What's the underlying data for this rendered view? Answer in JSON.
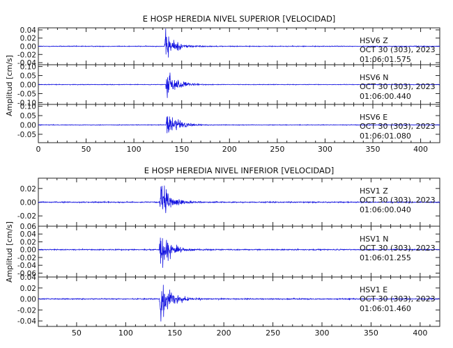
{
  "chart_data": [
    {
      "type": "line",
      "title": "E HOSP HEREDIA NIVEL SUPERIOR [VELOCIDAD]",
      "ylabel": "Amplitud [cm/s]",
      "xlim": [
        0,
        420
      ],
      "xticks": [
        0,
        50,
        100,
        150,
        200,
        250,
        300,
        350,
        400
      ],
      "line_color": "#1414e0",
      "series": [
        {
          "station": "HSV6",
          "component": "Z",
          "date": "OCT 30 (303), 2023",
          "time": "01:06:01.575",
          "ylim": [
            -0.045,
            0.045
          ],
          "yticks": [
            -0.04,
            -0.02,
            0.0,
            0.02,
            0.04
          ],
          "ytick_labels": [
            "-0.04",
            "-0.02",
            "0.00",
            "0.02",
            "0.04"
          ],
          "onset_x": 132,
          "peak_amplitude": 0.04,
          "noise_amplitude": 0.0008,
          "decay_s": 9
        },
        {
          "station": "HSV6",
          "component": "N",
          "date": "OCT 30 (303), 2023",
          "time": "01:06:00.440",
          "ylim": [
            -0.11,
            0.11
          ],
          "yticks": [
            -0.1,
            -0.05,
            0.0,
            0.05,
            0.1
          ],
          "ytick_labels": [
            "-0.10",
            "-0.05",
            "0.00",
            "0.05",
            "0.10"
          ],
          "onset_x": 133,
          "peak_amplitude": 0.1,
          "noise_amplitude": 0.0015,
          "decay_s": 9
        },
        {
          "station": "HSV6",
          "component": "E",
          "date": "OCT 30 (303), 2023",
          "time": "01:06:01.080",
          "ylim": [
            -0.095,
            0.11
          ],
          "yticks": [
            -0.05,
            0.0,
            0.05,
            0.1
          ],
          "ytick_labels": [
            "-0.05",
            "0.00",
            "0.05",
            "0.10"
          ],
          "onset_x": 133,
          "peak_amplitude": 0.09,
          "noise_amplitude": 0.0015,
          "decay_s": 10
        }
      ]
    },
    {
      "type": "line",
      "title": "E HOSP HEREDIA NIVEL INFERIOR [VELOCIDAD]",
      "ylabel": "Amplitud [cm/s]",
      "xlim": [
        11,
        420
      ],
      "xticks": [
        50,
        100,
        150,
        200,
        250,
        300,
        350,
        400
      ],
      "line_color": "#1414e0",
      "series": [
        {
          "station": "HSV1",
          "component": "Z",
          "date": "OCT 30 (303), 2023",
          "time": "01:06:00.040",
          "ylim": [
            -0.035,
            0.035
          ],
          "yticks": [
            -0.02,
            0.0,
            0.02
          ],
          "ytick_labels": [
            "-0.02",
            "0.00",
            "0.02"
          ],
          "onset_x": 134,
          "peak_amplitude": 0.03,
          "noise_amplitude": 0.0007,
          "decay_s": 9
        },
        {
          "station": "HSV1",
          "component": "N",
          "date": "OCT 30 (303), 2023",
          "time": "01:06:01.255",
          "ylim": [
            -0.07,
            0.06
          ],
          "yticks": [
            -0.06,
            -0.04,
            -0.02,
            0.0,
            0.02,
            0.04,
            0.06
          ],
          "ytick_labels": [
            "-0.06",
            "-0.04",
            "-0.02",
            "0.00",
            "0.02",
            "0.04",
            "0.06"
          ],
          "onset_x": 134,
          "peak_amplitude": 0.06,
          "noise_amplitude": 0.0012,
          "decay_s": 9
        },
        {
          "station": "HSV1",
          "component": "E",
          "date": "OCT 30 (303), 2023",
          "time": "01:06:01.460",
          "ylim": [
            -0.05,
            0.04
          ],
          "yticks": [
            -0.04,
            -0.02,
            0.0,
            0.02,
            0.04
          ],
          "ytick_labels": [
            "-0.04",
            "-0.02",
            "0.00",
            "0.02",
            "0.04"
          ],
          "onset_x": 134,
          "peak_amplitude": 0.045,
          "noise_amplitude": 0.0009,
          "decay_s": 9
        }
      ]
    }
  ]
}
